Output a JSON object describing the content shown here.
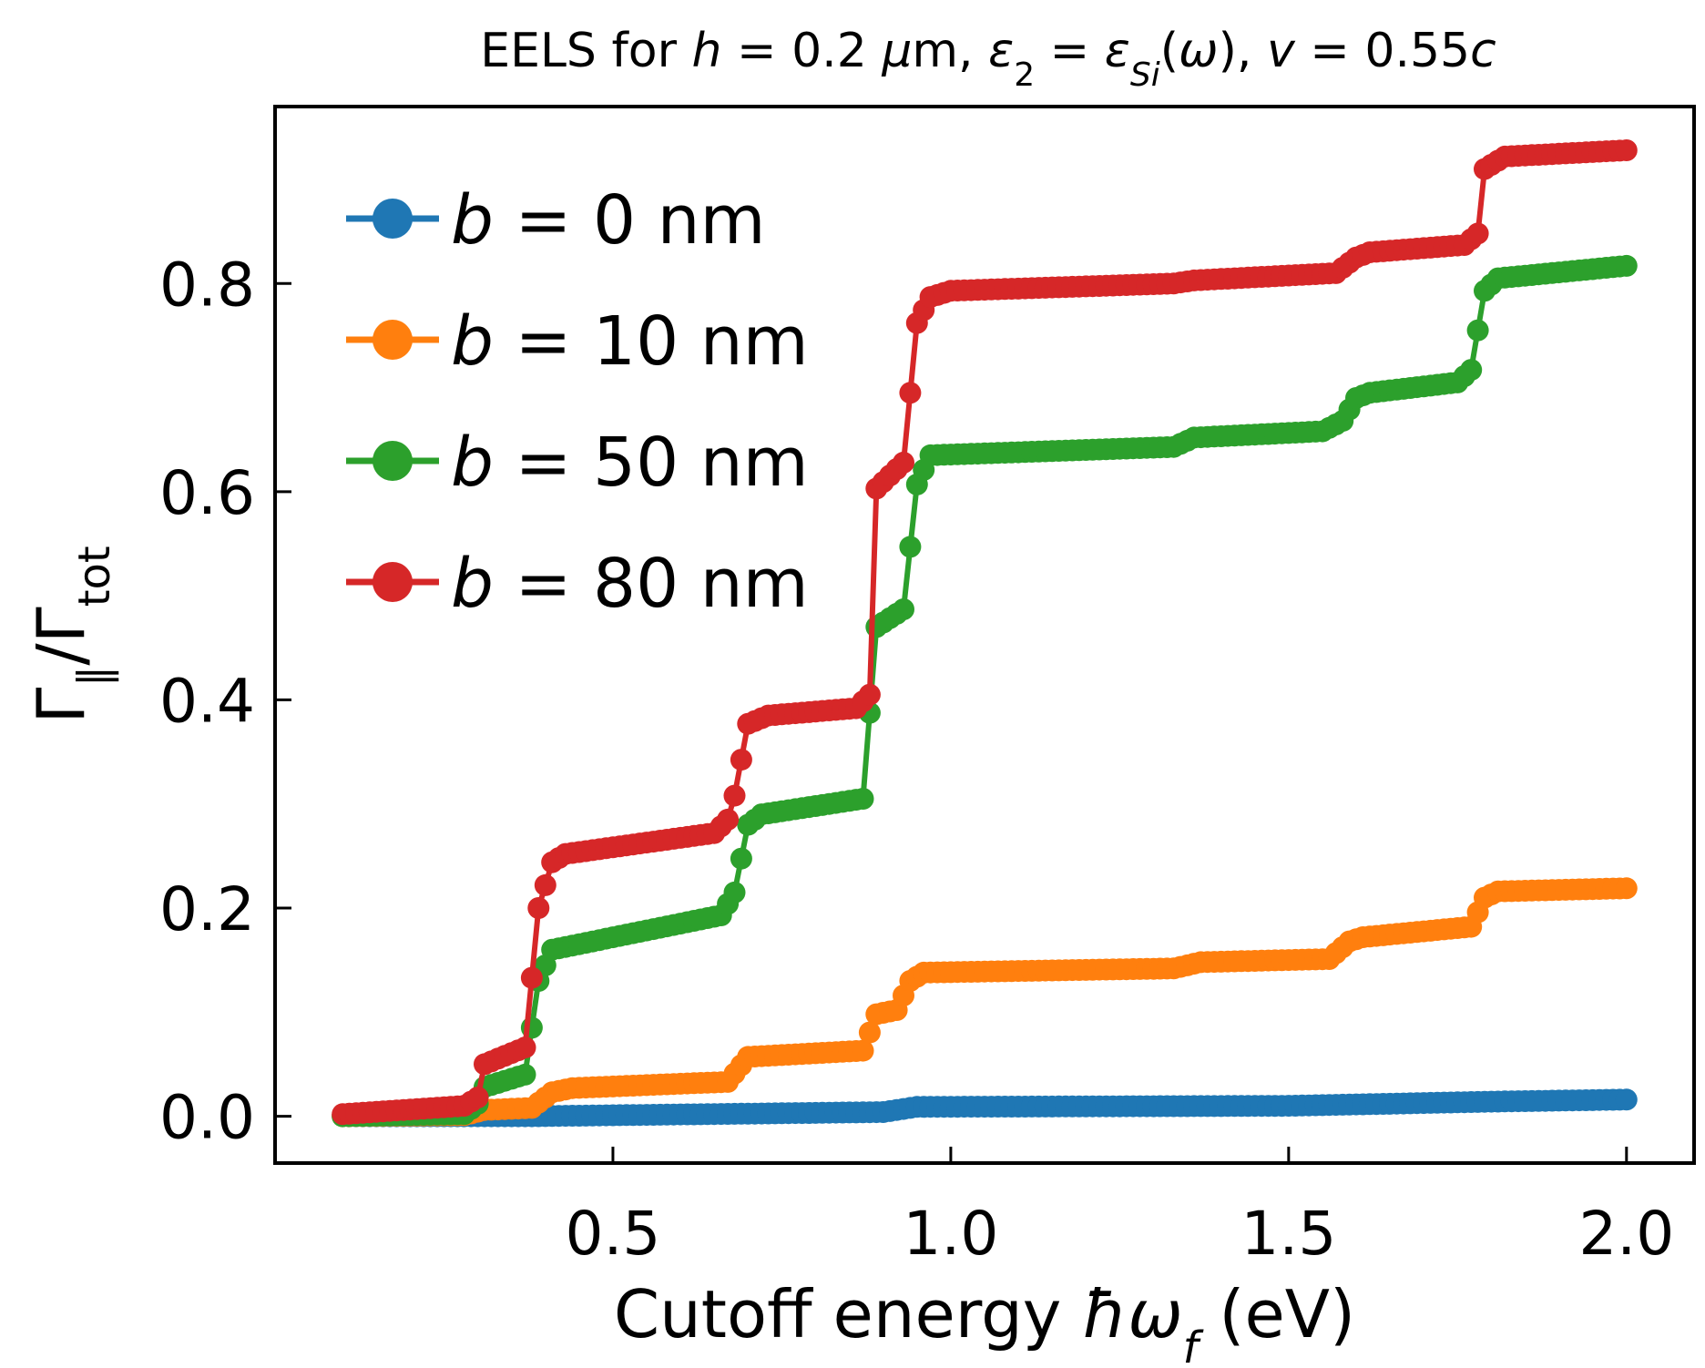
{
  "chart_data": {
    "type": "line",
    "title": {
      "text": "EELS for h = 0.2 μm, ε₂ = εSi(ω), v = 0.55c",
      "parts": [
        {
          "t": "EELS for "
        },
        {
          "t": "h",
          "i": true
        },
        {
          "t": " = 0.2 "
        },
        {
          "t": "μ",
          "i": true
        },
        {
          "t": "m, "
        },
        {
          "t": "ε",
          "i": true
        },
        {
          "t": "2",
          "sub": true
        },
        {
          "t": " = "
        },
        {
          "t": "ε",
          "i": true
        },
        {
          "t": "Si",
          "sub": true,
          "i": true
        },
        {
          "t": "("
        },
        {
          "t": "ω",
          "i": true
        },
        {
          "t": "), "
        },
        {
          "t": "v",
          "i": true
        },
        {
          "t": " = 0.55"
        },
        {
          "t": "c",
          "i": true
        }
      ]
    },
    "xlabel": {
      "text": "Cutoff energy ħωf (eV)",
      "parts": [
        {
          "t": "Cutoff energy "
        },
        {
          "t": "ħω",
          "i": true
        },
        {
          "t": "f",
          "sub": true,
          "i": true
        },
        {
          "t": " (eV)"
        }
      ]
    },
    "ylabel": {
      "text": "Γ∥/Γtot",
      "parts": [
        {
          "t": "Γ"
        },
        {
          "t": "∥",
          "sub": true
        },
        {
          "t": "/Γ"
        },
        {
          "t": "tot",
          "sub": true
        }
      ]
    },
    "xlim": [
      0.0,
      2.1
    ],
    "ylim": [
      -0.045,
      0.97
    ],
    "xticks": [
      0.5,
      1.0,
      1.5,
      2.0
    ],
    "xtick_labels": [
      "0.5",
      "1.0",
      "1.5",
      "2.0"
    ],
    "yticks": [
      0.0,
      0.2,
      0.4,
      0.6,
      0.8
    ],
    "ytick_labels": [
      "0.0",
      "0.2",
      "0.4",
      "0.6",
      "0.8"
    ],
    "grid": false,
    "legend_position": "top-left",
    "x_range": [
      0.1,
      2.0
    ],
    "x_step": 0.01,
    "series": [
      {
        "name": "b = 0 nm",
        "label_parts": [
          {
            "t": "b",
            "i": true
          },
          {
            "t": " = 0 nm"
          }
        ],
        "color": "#1f77b4",
        "knots": [
          [
            0.1,
            0.0
          ],
          [
            0.38,
            0.0
          ],
          [
            0.9,
            0.004
          ],
          [
            0.95,
            0.009
          ],
          [
            1.5,
            0.01
          ],
          [
            1.8,
            0.014
          ],
          [
            2.0,
            0.016
          ]
        ]
      },
      {
        "name": "b = 10 nm",
        "label_parts": [
          {
            "t": "b",
            "i": true
          },
          {
            "t": " = 10 nm"
          }
        ],
        "color": "#ff7f0e",
        "knots": [
          [
            0.1,
            0.0
          ],
          [
            0.28,
            0.001
          ],
          [
            0.31,
            0.006
          ],
          [
            0.38,
            0.008
          ],
          [
            0.41,
            0.023
          ],
          [
            0.44,
            0.027
          ],
          [
            0.67,
            0.033
          ],
          [
            0.7,
            0.057
          ],
          [
            0.87,
            0.063
          ],
          [
            0.89,
            0.098
          ],
          [
            0.92,
            0.102
          ],
          [
            0.94,
            0.13
          ],
          [
            0.96,
            0.138
          ],
          [
            1.33,
            0.142
          ],
          [
            1.37,
            0.148
          ],
          [
            1.56,
            0.151
          ],
          [
            1.59,
            0.168
          ],
          [
            1.61,
            0.172
          ],
          [
            1.77,
            0.182
          ],
          [
            1.79,
            0.21
          ],
          [
            1.81,
            0.216
          ],
          [
            2.0,
            0.219
          ]
        ]
      },
      {
        "name": "b = 50 nm",
        "label_parts": [
          {
            "t": "b",
            "i": true
          },
          {
            "t": " = 50 nm"
          }
        ],
        "color": "#2ca02c",
        "knots": [
          [
            0.1,
            0.0
          ],
          [
            0.28,
            0.002
          ],
          [
            0.3,
            0.012
          ],
          [
            0.31,
            0.028
          ],
          [
            0.37,
            0.04
          ],
          [
            0.39,
            0.13
          ],
          [
            0.41,
            0.16
          ],
          [
            0.66,
            0.193
          ],
          [
            0.68,
            0.215
          ],
          [
            0.7,
            0.28
          ],
          [
            0.72,
            0.29
          ],
          [
            0.87,
            0.305
          ],
          [
            0.89,
            0.47
          ],
          [
            0.93,
            0.487
          ],
          [
            0.95,
            0.607
          ],
          [
            0.97,
            0.635
          ],
          [
            1.33,
            0.643
          ],
          [
            1.36,
            0.652
          ],
          [
            1.55,
            0.658
          ],
          [
            1.58,
            0.668
          ],
          [
            1.6,
            0.69
          ],
          [
            1.62,
            0.695
          ],
          [
            1.75,
            0.705
          ],
          [
            1.77,
            0.717
          ],
          [
            1.79,
            0.793
          ],
          [
            1.81,
            0.805
          ],
          [
            2.0,
            0.817
          ]
        ]
      },
      {
        "name": "b = 80 nm",
        "label_parts": [
          {
            "t": "b",
            "i": true
          },
          {
            "t": " = 80 nm"
          }
        ],
        "color": "#d62728",
        "knots": [
          [
            0.1,
            0.002
          ],
          [
            0.28,
            0.01
          ],
          [
            0.3,
            0.018
          ],
          [
            0.31,
            0.05
          ],
          [
            0.37,
            0.066
          ],
          [
            0.39,
            0.2
          ],
          [
            0.41,
            0.244
          ],
          [
            0.43,
            0.252
          ],
          [
            0.65,
            0.272
          ],
          [
            0.67,
            0.285
          ],
          [
            0.68,
            0.308
          ],
          [
            0.7,
            0.377
          ],
          [
            0.73,
            0.385
          ],
          [
            0.86,
            0.392
          ],
          [
            0.88,
            0.405
          ],
          [
            0.89,
            0.603
          ],
          [
            0.93,
            0.628
          ],
          [
            0.95,
            0.762
          ],
          [
            0.97,
            0.787
          ],
          [
            1.0,
            0.793
          ],
          [
            1.33,
            0.8
          ],
          [
            1.36,
            0.803
          ],
          [
            1.57,
            0.81
          ],
          [
            1.6,
            0.825
          ],
          [
            1.62,
            0.83
          ],
          [
            1.76,
            0.837
          ],
          [
            1.78,
            0.848
          ],
          [
            1.79,
            0.91
          ],
          [
            1.82,
            0.922
          ],
          [
            2.0,
            0.928
          ]
        ]
      }
    ]
  }
}
